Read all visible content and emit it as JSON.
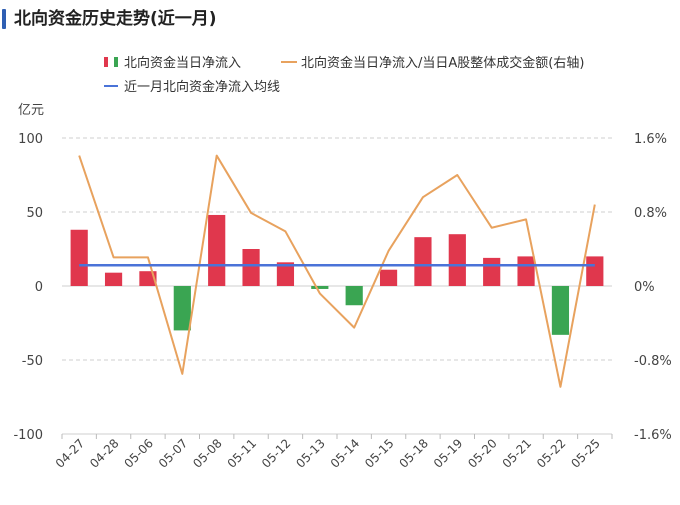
{
  "page_title": "北向资金历史走势(近一月)",
  "colors": {
    "bar_positive": "#e0374d",
    "bar_negative": "#3aa552",
    "line_ratio": "#e8a25e",
    "line_avg": "#4a73d8",
    "accent": "#2f5fb3"
  },
  "chart_data": {
    "type": "bar",
    "title": "",
    "y_unit_label": "亿元",
    "categories": [
      "04-27",
      "04-28",
      "05-06",
      "05-07",
      "05-08",
      "05-11",
      "05-12",
      "05-13",
      "05-14",
      "05-15",
      "05-18",
      "05-19",
      "05-20",
      "05-21",
      "05-22",
      "05-25"
    ],
    "ylim": [
      -100,
      100
    ],
    "y_ticks": [
      100,
      50,
      0,
      -50,
      -100
    ],
    "y2lim": [
      -1.6,
      1.6
    ],
    "y2_ticks": [
      "1.6%",
      "0.8%",
      "0%",
      "-0.8%",
      "-1.6%"
    ],
    "y2_tick_values": [
      1.6,
      0.8,
      0,
      -0.8,
      -1.6
    ],
    "grid": true,
    "legend_position": "top",
    "series": [
      {
        "name": "北向资金当日净流入",
        "type": "bar",
        "axis": "left",
        "values": [
          38,
          9,
          10,
          -30,
          48,
          25,
          16,
          -2,
          -13,
          11,
          33,
          35,
          19,
          20,
          -33,
          20
        ]
      },
      {
        "name": "北向资金当日净流入/当日A股整体成交金额(右轴)",
        "type": "line",
        "axis": "right",
        "values": [
          1.41,
          0.31,
          0.31,
          -0.95,
          1.41,
          0.79,
          0.59,
          -0.08,
          -0.45,
          0.38,
          0.96,
          1.2,
          0.63,
          0.72,
          -1.09,
          0.88
        ]
      },
      {
        "name": "近一月北向资金净流入均线",
        "type": "line",
        "axis": "left",
        "values": [
          14,
          14,
          14,
          14,
          14,
          14,
          14,
          14,
          14,
          14,
          14,
          14,
          14,
          14,
          14,
          14
        ]
      }
    ]
  }
}
